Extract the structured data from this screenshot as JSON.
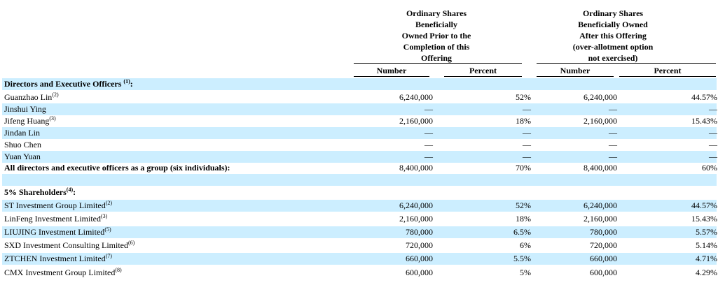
{
  "header": {
    "group1": [
      "Ordinary Shares",
      "Beneficially",
      "Owned Prior to the",
      "Completion of this",
      "Offering"
    ],
    "group2": [
      "Ordinary Shares",
      "Beneficially Owned",
      "After this Offering",
      "(over-allotment option",
      "not exercised)"
    ],
    "col_number": "Number",
    "col_percent": "Percent",
    "col_number2": "Number",
    "col_percent2": "Percent"
  },
  "sections": {
    "directors": {
      "label": "Directors and Executive Officers ",
      "note": "(1)",
      "suffix": ":"
    },
    "shareholders": {
      "label": "5% Shareholders",
      "note": "(4)",
      "suffix": ":"
    }
  },
  "rows": [
    {
      "name": "Guanzhao Lin",
      "note": "(2)",
      "n1": "6,240,000",
      "p1": "52%",
      "n2": "6,240,000",
      "p2": "44.57%"
    },
    {
      "name": "Jinshui Ying",
      "note": "",
      "n1": "—",
      "p1": "—",
      "n2": "—",
      "p2": "—"
    },
    {
      "name": "Jifeng Huang",
      "note": "(3)",
      "n1": "2,160,000",
      "p1": "18%",
      "n2": "2,160,000",
      "p2": "15.43%"
    },
    {
      "name": "Jindan Lin",
      "note": "",
      "n1": "—",
      "p1": "—",
      "n2": "—",
      "p2": "—"
    },
    {
      "name": "Shuo Chen",
      "note": "",
      "n1": "—",
      "p1": "—",
      "n2": "—",
      "p2": "—"
    },
    {
      "name": "Yuan Yuan",
      "note": "",
      "n1": "—",
      "p1": "—",
      "n2": "—",
      "p2": "—"
    },
    {
      "name": "All directors and executive officers as a group (six individuals):",
      "note": "",
      "n1": "8,400,000",
      "p1": "70%",
      "n2": "8,400,000",
      "p2": "60%"
    }
  ],
  "rows2": [
    {
      "name": "ST Investment Group Limited",
      "note": "(2)",
      "n1": "6,240,000",
      "p1": "52%",
      "n2": "6,240,000",
      "p2": "44.57%"
    },
    {
      "name": "LinFeng Investment Limited",
      "note": "(3)",
      "n1": "2,160,000",
      "p1": "18%",
      "n2": "2,160,000",
      "p2": "15.43%"
    },
    {
      "name": "LIUJING Investment Limited",
      "note": "(5)",
      "n1": "780,000",
      "p1": "6.5%",
      "n2": "780,000",
      "p2": "5.57%"
    },
    {
      "name": "SXD Investment Consulting Limited",
      "note": "(6)",
      "n1": "720,000",
      "p1": "6%",
      "n2": "720,000",
      "p2": "5.14%"
    },
    {
      "name": "ZTCHEN Investment Limited",
      "note": "(7)",
      "n1": "660,000",
      "p1": "5.5%",
      "n2": "660,000",
      "p2": "4.71%"
    },
    {
      "name": "CMX Investment Group Limited",
      "note": "(8)",
      "n1": "600,000",
      "p1": "5%",
      "n2": "600,000",
      "p2": "4.29%"
    }
  ],
  "colors": {
    "shade": "#cceeff"
  }
}
